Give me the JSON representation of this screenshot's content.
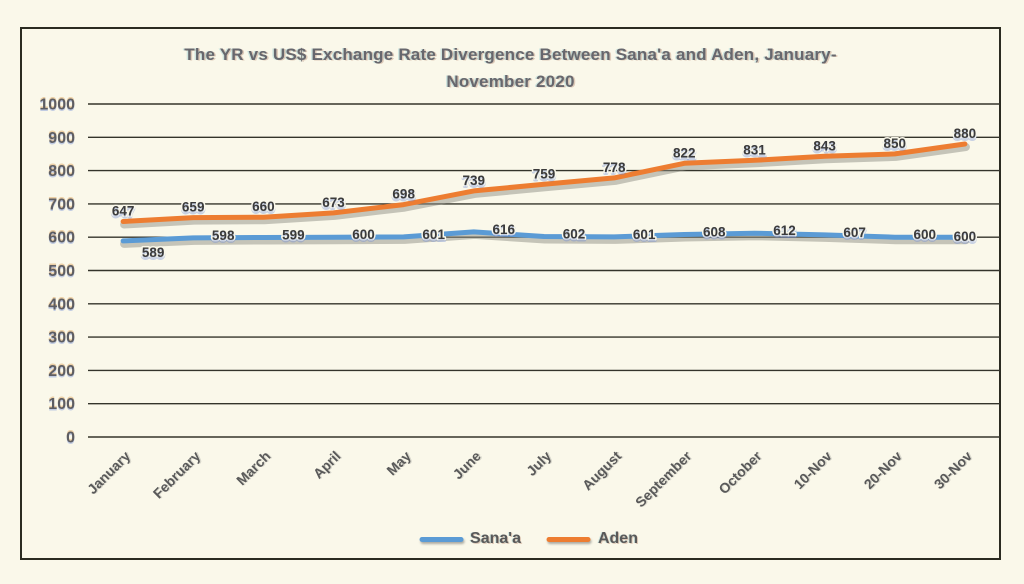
{
  "header": {
    "title_lines": [
      "The YR vs US$ Exchange Rate Divergence Between Sana'a and Aden, January-",
      "November 2020"
    ]
  },
  "chart_data": {
    "type": "line",
    "title": "The YR vs US$ Exchange Rate Divergence Between Sana'a and Aden, January-November 2020",
    "categories": [
      "January",
      "February",
      "March",
      "April",
      "May",
      "June",
      "July",
      "August",
      "September",
      "October",
      "10-Nov",
      "20-Nov",
      "30-Nov"
    ],
    "series": [
      {
        "name": "Sana'a",
        "color": "#5B9BD5",
        "values": [
          589,
          598,
          599,
          600,
          601,
          616,
          602,
          601,
          608,
          612,
          607,
          600,
          600
        ]
      },
      {
        "name": "Aden",
        "color": "#ED7D31",
        "values": [
          647,
          659,
          660,
          673,
          698,
          739,
          759,
          778,
          822,
          831,
          843,
          850,
          880
        ]
      }
    ],
    "xlabel": "",
    "ylabel": "",
    "ylim": [
      0,
      1000
    ],
    "yticks": [
      0,
      100,
      200,
      300,
      400,
      500,
      600,
      700,
      800,
      900,
      1000
    ],
    "grid": "horizontal",
    "legend_position": "bottom",
    "data_labels": "shown"
  },
  "colors": {
    "background": "#FAF8EA",
    "frame_border": "#2B2B21",
    "gridline": "#34342B",
    "title_text": "#67676D",
    "axis_text": "#595959",
    "data_label_text": "#3B3B3B",
    "sanaa_line": "#5B9BD5",
    "aden_line": "#ED7D31"
  }
}
